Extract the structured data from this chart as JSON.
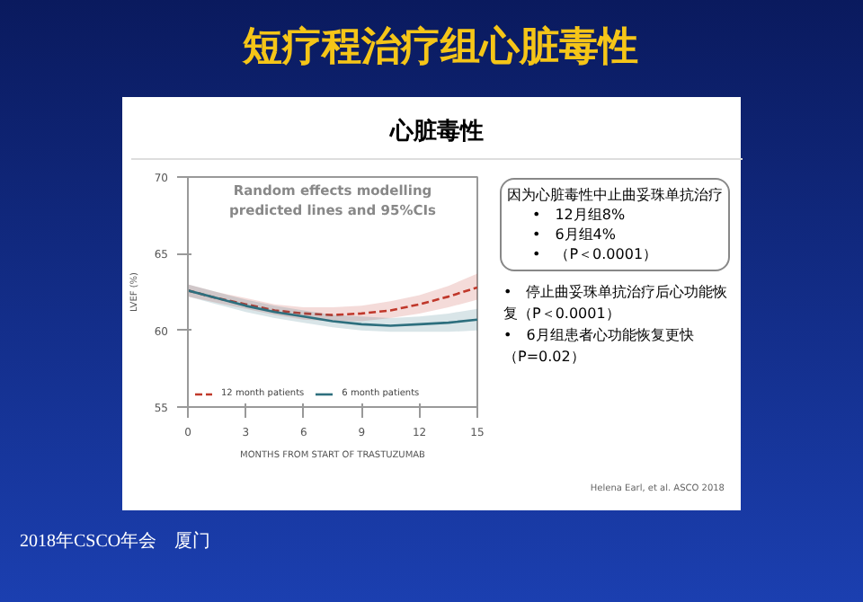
{
  "chart_data": {
    "type": "line",
    "title": "Random effects modelling\npredicted lines and 95%CIs",
    "xlabel": "MONTHS FROM START OF TRASTUZUMAB",
    "ylabel": "LVEF (%)",
    "x": [
      0,
      1.5,
      3,
      4.5,
      6,
      7.5,
      9,
      10.5,
      12,
      13.5,
      15
    ],
    "series": [
      {
        "name": "12 month patients",
        "color": "#c0392b",
        "line_style": "dashed",
        "values": [
          62.6,
          62.1,
          61.7,
          61.3,
          61.1,
          61.0,
          61.1,
          61.3,
          61.7,
          62.2,
          62.8
        ],
        "lower": [
          62.2,
          61.8,
          61.4,
          61.0,
          60.7,
          60.6,
          60.6,
          60.8,
          61.1,
          61.5,
          62.0
        ],
        "upper": [
          63.0,
          62.5,
          62.1,
          61.7,
          61.5,
          61.5,
          61.6,
          61.9,
          62.3,
          62.9,
          63.7
        ]
      },
      {
        "name": "6 month patients",
        "color": "#2e6f7e",
        "line_style": "solid",
        "values": [
          62.6,
          62.1,
          61.6,
          61.2,
          60.9,
          60.6,
          60.4,
          60.3,
          60.4,
          60.5,
          60.7
        ],
        "lower": [
          62.2,
          61.7,
          61.2,
          60.8,
          60.5,
          60.2,
          60.0,
          59.9,
          59.9,
          59.9,
          60.0
        ],
        "upper": [
          63.0,
          62.5,
          62.0,
          61.6,
          61.3,
          61.0,
          60.9,
          60.8,
          60.9,
          61.1,
          61.4
        ]
      }
    ],
    "xlim": [
      0,
      15
    ],
    "xticks": [
      0,
      3,
      6,
      9,
      12,
      15
    ],
    "ylim": [
      55,
      70
    ],
    "yticks": [
      55,
      60,
      65,
      70
    ],
    "legend": "bottom left",
    "annotations": [
      "短疗程治疗组心脏毒性",
      "心脏毒性",
      "因为心脏毒性中止曲妥珠单抗治疗",
      "•　12月组8%",
      "•　6月组4%",
      "•　（P＜0.0001）",
      "•　停止曲妥珠单抗治疗后心功能恢复（P＜0.0001）",
      "•　6月组患者心功能恢复更快（P=0.02）",
      "Helena Earl, et al. ASCO 2018",
      "2018年CSCO年会　厦门"
    ]
  }
}
